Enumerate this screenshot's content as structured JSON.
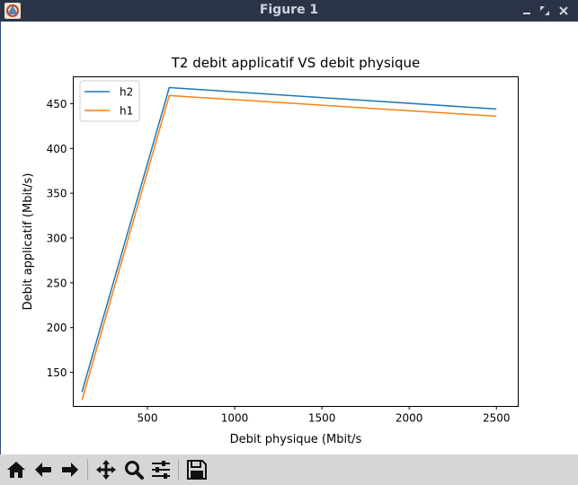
{
  "window": {
    "title": "Figure 1"
  },
  "toolbar": {
    "buttons": [
      {
        "icon": "home-icon"
      },
      {
        "icon": "back-arrow-icon"
      },
      {
        "icon": "forward-arrow-icon"
      },
      {
        "icon": "pan-icon"
      },
      {
        "icon": "zoom-icon"
      },
      {
        "icon": "configure-subplots-icon"
      },
      {
        "icon": "save-icon"
      }
    ]
  },
  "chart_data": {
    "type": "line",
    "title": "T2 debit applicatif VS debit physique",
    "xlabel": "Debit physique (Mbit/s",
    "ylabel": "Debit applicatif (Mbit/s)",
    "xlim": [
      75,
      2625
    ],
    "ylim": [
      112,
      480
    ],
    "xticks": [
      500,
      1000,
      1500,
      2000,
      2500
    ],
    "yticks": [
      150,
      200,
      250,
      300,
      350,
      400,
      450
    ],
    "xtick_labels": [
      "500",
      "1000",
      "1500",
      "2000",
      "2500"
    ],
    "ytick_labels": [
      "150",
      "200",
      "250",
      "300",
      "350",
      "400",
      "450"
    ],
    "grid": false,
    "legend_position": "upper-left",
    "series": [
      {
        "name": "h2",
        "color": "#1f77b4",
        "x": [
          125,
          625,
          2500
        ],
        "y": [
          128,
          468,
          444
        ]
      },
      {
        "name": "h1",
        "color": "#ff7f0e",
        "x": [
          125,
          625,
          2500
        ],
        "y": [
          119,
          459,
          436
        ]
      }
    ]
  }
}
